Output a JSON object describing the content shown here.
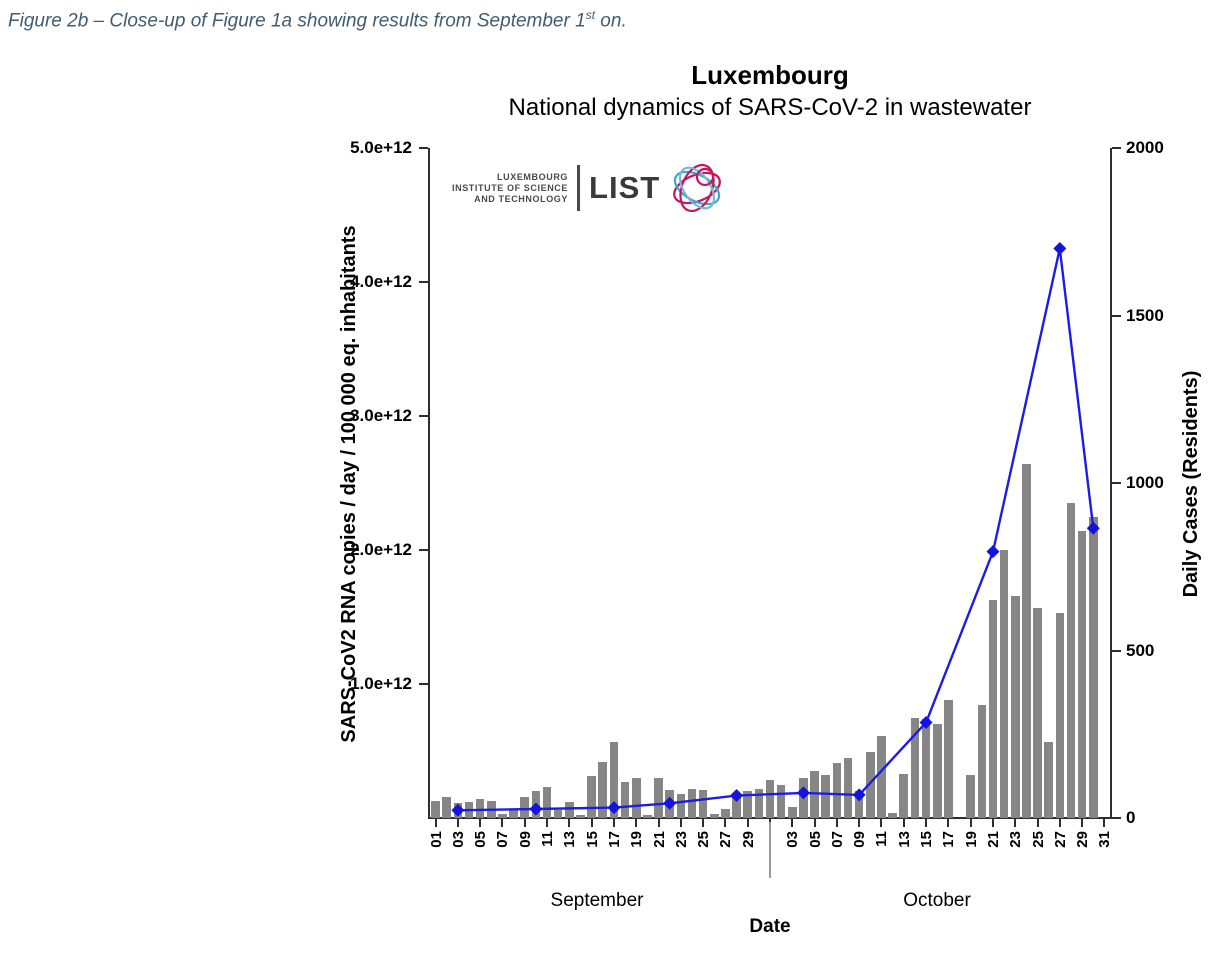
{
  "caption": {
    "prefix": "Figure 2b – Close-up of Figure 1a showing results from September 1",
    "sup": "st",
    "suffix": " on."
  },
  "logo": {
    "line1": "LUXEMBOURG",
    "line2": "INSTITUTE OF SCIENCE",
    "line3": "AND TECHNOLOGY",
    "wordmark": "LIST"
  },
  "colors": {
    "bar": "#868686",
    "line": "#1c1ce8",
    "marker": "#1414e0",
    "caption_text": "#3e5c74",
    "axis": "#2e2e2e",
    "separator": "#9a9a9a",
    "logo_pink": "#c4175e",
    "logo_cyan": "#3aa9c9",
    "logo_lightblue": "#7fb3d5"
  },
  "chart_data": {
    "type": "bar",
    "combo_note": "gray daily bars on left axis + blue diamond line series on right axis",
    "title": "Luxembourg",
    "subtitle": "National dynamics of SARS-CoV-2 in wastewater",
    "layout": {
      "grid": false,
      "legend": "none",
      "x_tick_label_rotation": 90
    },
    "x_axis": {
      "title": "Date",
      "month_labels": [
        "September",
        "October"
      ],
      "september_tick_labels": [
        "01",
        "03",
        "05",
        "07",
        "09",
        "11",
        "13",
        "15",
        "17",
        "19",
        "21",
        "23",
        "25",
        "27",
        "29"
      ],
      "october_tick_labels": [
        "03",
        "05",
        "07",
        "09",
        "11",
        "13",
        "15",
        "17",
        "19",
        "21",
        "23",
        "25",
        "27",
        "29",
        "31"
      ]
    },
    "left_y_axis": {
      "title": "SARS-CoV2 RNA copies / day  / 100 000 eq. inhabitants",
      "tick_labels": [
        "1.0e+12",
        "2.0e+12",
        "3.0e+12",
        "4.0e+12",
        "5.0e+12"
      ],
      "range": [
        0,
        5000000000000.0
      ],
      "applies_to": "bars"
    },
    "right_y_axis": {
      "title": "Daily Cases (Residents)",
      "tick_labels": [
        "0",
        "500",
        "1000",
        "1500",
        "2000"
      ],
      "range": [
        0,
        2000
      ],
      "applies_to": "line"
    },
    "bars": {
      "name": "SARS-CoV-2 RNA copies / day / 100 000 eq. inhabitants",
      "unit_note": "value_e12 = value in units of 1e12",
      "points": [
        {
          "date": "Sep 01",
          "value_e12": 0.13
        },
        {
          "date": "Sep 02",
          "value_e12": 0.16
        },
        {
          "date": "Sep 03",
          "value_e12": 0.11
        },
        {
          "date": "Sep 04",
          "value_e12": 0.12
        },
        {
          "date": "Sep 05",
          "value_e12": 0.14
        },
        {
          "date": "Sep 06",
          "value_e12": 0.13
        },
        {
          "date": "Sep 07",
          "value_e12": 0.03
        },
        {
          "date": "Sep 08",
          "value_e12": 0.07
        },
        {
          "date": "Sep 09",
          "value_e12": 0.16
        },
        {
          "date": "Sep 10",
          "value_e12": 0.2
        },
        {
          "date": "Sep 11",
          "value_e12": 0.23
        },
        {
          "date": "Sep 12",
          "value_e12": 0.06
        },
        {
          "date": "Sep 13",
          "value_e12": 0.12
        },
        {
          "date": "Sep 14",
          "value_e12": 0.02
        },
        {
          "date": "Sep 15",
          "value_e12": 0.31
        },
        {
          "date": "Sep 16",
          "value_e12": 0.42
        },
        {
          "date": "Sep 17",
          "value_e12": 0.57
        },
        {
          "date": "Sep 18",
          "value_e12": 0.27
        },
        {
          "date": "Sep 19",
          "value_e12": 0.3
        },
        {
          "date": "Sep 20",
          "value_e12": 0.02
        },
        {
          "date": "Sep 21",
          "value_e12": 0.3
        },
        {
          "date": "Sep 22",
          "value_e12": 0.21
        },
        {
          "date": "Sep 23",
          "value_e12": 0.18
        },
        {
          "date": "Sep 24",
          "value_e12": 0.22
        },
        {
          "date": "Sep 25",
          "value_e12": 0.21
        },
        {
          "date": "Sep 26",
          "value_e12": 0.03
        },
        {
          "date": "Sep 27",
          "value_e12": 0.07
        },
        {
          "date": "Sep 28",
          "value_e12": 0.16
        },
        {
          "date": "Sep 29",
          "value_e12": 0.2
        },
        {
          "date": "Sep 30",
          "value_e12": 0.22
        },
        {
          "date": "Oct 01",
          "value_e12": 0.28
        },
        {
          "date": "Oct 02",
          "value_e12": 0.25
        },
        {
          "date": "Oct 03",
          "value_e12": 0.08
        },
        {
          "date": "Oct 04",
          "value_e12": 0.3
        },
        {
          "date": "Oct 05",
          "value_e12": 0.35
        },
        {
          "date": "Oct 06",
          "value_e12": 0.32
        },
        {
          "date": "Oct 07",
          "value_e12": 0.41
        },
        {
          "date": "Oct 08",
          "value_e12": 0.45
        },
        {
          "date": "Oct 09",
          "value_e12": 0.2
        },
        {
          "date": "Oct 10",
          "value_e12": 0.49
        },
        {
          "date": "Oct 11",
          "value_e12": 0.61
        },
        {
          "date": "Oct 12",
          "value_e12": 0.04
        },
        {
          "date": "Oct 13",
          "value_e12": 0.33
        },
        {
          "date": "Oct 14",
          "value_e12": 0.75
        },
        {
          "date": "Oct 15",
          "value_e12": 0.74
        },
        {
          "date": "Oct 16",
          "value_e12": 0.7
        },
        {
          "date": "Oct 17",
          "value_e12": 0.88
        },
        {
          "date": "Oct 19",
          "value_e12": 0.32
        },
        {
          "date": "Oct 20",
          "value_e12": 0.84
        },
        {
          "date": "Oct 21",
          "value_e12": 1.63
        },
        {
          "date": "Oct 22",
          "value_e12": 2.0
        },
        {
          "date": "Oct 23",
          "value_e12": 1.66
        },
        {
          "date": "Oct 24",
          "value_e12": 2.64
        },
        {
          "date": "Oct 25",
          "value_e12": 1.57
        },
        {
          "date": "Oct 26",
          "value_e12": 0.57
        },
        {
          "date": "Oct 27",
          "value_e12": 1.53
        },
        {
          "date": "Oct 28",
          "value_e12": 2.35
        },
        {
          "date": "Oct 29",
          "value_e12": 2.14
        },
        {
          "date": "Oct 30",
          "value_e12": 2.25
        }
      ]
    },
    "line": {
      "name": "Daily Cases (Residents)",
      "marker": "diamond",
      "points": [
        {
          "date": "Sep 03",
          "cases": 23
        },
        {
          "date": "Sep 10",
          "cases": 27
        },
        {
          "date": "Sep 17",
          "cases": 31
        },
        {
          "date": "Sep 22",
          "cases": 44
        },
        {
          "date": "Sep 28",
          "cases": 67
        },
        {
          "date": "Oct 04",
          "cases": 75
        },
        {
          "date": "Oct 09",
          "cases": 69
        },
        {
          "date": "Oct 15",
          "cases": 285
        },
        {
          "date": "Oct 21",
          "cases": 795
        },
        {
          "date": "Oct 27",
          "cases": 1700
        },
        {
          "date": "Oct 30",
          "cases": 865
        }
      ]
    }
  }
}
